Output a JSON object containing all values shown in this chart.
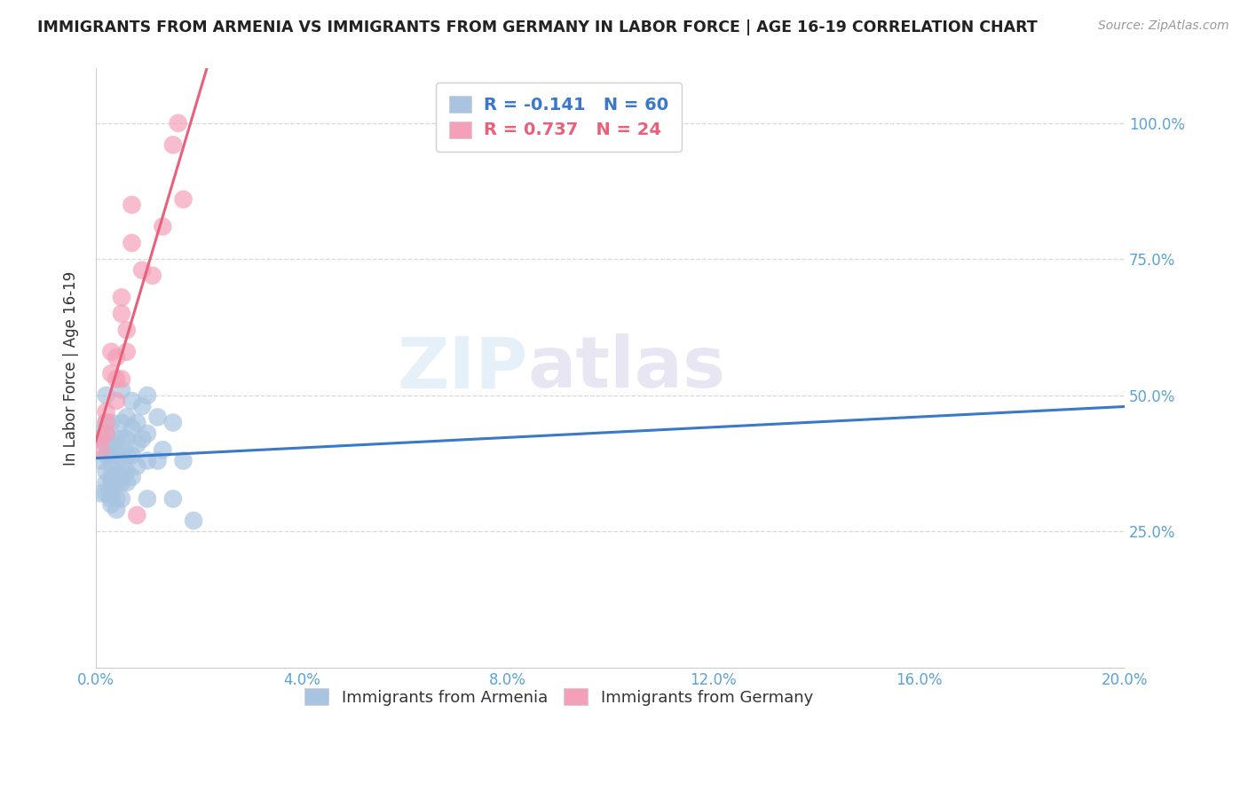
{
  "title": "IMMIGRANTS FROM ARMENIA VS IMMIGRANTS FROM GERMANY IN LABOR FORCE | AGE 16-19 CORRELATION CHART",
  "source": "Source: ZipAtlas.com",
  "ylabel": "In Labor Force | Age 16-19",
  "watermark": "ZIPatlas",
  "armenia_R": "-0.141",
  "armenia_N": "60",
  "germany_R": "0.737",
  "germany_N": "24",
  "armenia_color": "#a8c4e0",
  "germany_color": "#f4a0b8",
  "armenia_line_color": "#3a78c9",
  "germany_line_color": "#e8607a",
  "armenia_scatter": [
    [
      0.0,
      0.42
    ],
    [
      0.001,
      0.43
    ],
    [
      0.001,
      0.38
    ],
    [
      0.001,
      0.32
    ],
    [
      0.002,
      0.5
    ],
    [
      0.002,
      0.45
    ],
    [
      0.002,
      0.43
    ],
    [
      0.002,
      0.41
    ],
    [
      0.002,
      0.39
    ],
    [
      0.002,
      0.36
    ],
    [
      0.002,
      0.34
    ],
    [
      0.002,
      0.32
    ],
    [
      0.003,
      0.45
    ],
    [
      0.003,
      0.41
    ],
    [
      0.003,
      0.39
    ],
    [
      0.003,
      0.37
    ],
    [
      0.003,
      0.35
    ],
    [
      0.003,
      0.34
    ],
    [
      0.003,
      0.33
    ],
    [
      0.003,
      0.32
    ],
    [
      0.003,
      0.31
    ],
    [
      0.003,
      0.3
    ],
    [
      0.004,
      0.42
    ],
    [
      0.004,
      0.39
    ],
    [
      0.004,
      0.36
    ],
    [
      0.004,
      0.34
    ],
    [
      0.004,
      0.31
    ],
    [
      0.004,
      0.29
    ],
    [
      0.005,
      0.51
    ],
    [
      0.005,
      0.45
    ],
    [
      0.005,
      0.42
    ],
    [
      0.005,
      0.39
    ],
    [
      0.005,
      0.36
    ],
    [
      0.005,
      0.34
    ],
    [
      0.005,
      0.31
    ],
    [
      0.006,
      0.46
    ],
    [
      0.006,
      0.42
    ],
    [
      0.006,
      0.39
    ],
    [
      0.006,
      0.36
    ],
    [
      0.006,
      0.34
    ],
    [
      0.007,
      0.49
    ],
    [
      0.007,
      0.44
    ],
    [
      0.007,
      0.39
    ],
    [
      0.007,
      0.35
    ],
    [
      0.008,
      0.45
    ],
    [
      0.008,
      0.41
    ],
    [
      0.008,
      0.37
    ],
    [
      0.009,
      0.48
    ],
    [
      0.009,
      0.42
    ],
    [
      0.01,
      0.5
    ],
    [
      0.01,
      0.43
    ],
    [
      0.01,
      0.38
    ],
    [
      0.01,
      0.31
    ],
    [
      0.012,
      0.46
    ],
    [
      0.012,
      0.38
    ],
    [
      0.013,
      0.4
    ],
    [
      0.015,
      0.45
    ],
    [
      0.015,
      0.31
    ],
    [
      0.017,
      0.38
    ],
    [
      0.019,
      0.27
    ]
  ],
  "germany_scatter": [
    [
      0.001,
      0.42
    ],
    [
      0.001,
      0.4
    ],
    [
      0.002,
      0.47
    ],
    [
      0.002,
      0.45
    ],
    [
      0.002,
      0.43
    ],
    [
      0.003,
      0.58
    ],
    [
      0.003,
      0.54
    ],
    [
      0.004,
      0.57
    ],
    [
      0.004,
      0.53
    ],
    [
      0.004,
      0.49
    ],
    [
      0.005,
      0.68
    ],
    [
      0.005,
      0.65
    ],
    [
      0.005,
      0.53
    ],
    [
      0.006,
      0.62
    ],
    [
      0.006,
      0.58
    ],
    [
      0.007,
      0.85
    ],
    [
      0.007,
      0.78
    ],
    [
      0.008,
      0.28
    ],
    [
      0.009,
      0.73
    ],
    [
      0.011,
      0.72
    ],
    [
      0.013,
      0.81
    ],
    [
      0.015,
      0.96
    ],
    [
      0.016,
      1.0
    ],
    [
      0.017,
      0.86
    ]
  ],
  "x_min": 0.0,
  "x_max": 0.2,
  "y_min": 0.0,
  "y_max": 1.1,
  "y_ticks": [
    0.25,
    0.5,
    0.75,
    1.0
  ],
  "x_ticks": [
    0.0,
    0.04,
    0.08,
    0.12,
    0.16,
    0.2
  ],
  "grid_color": "#d8d8d8",
  "background_color": "#ffffff"
}
